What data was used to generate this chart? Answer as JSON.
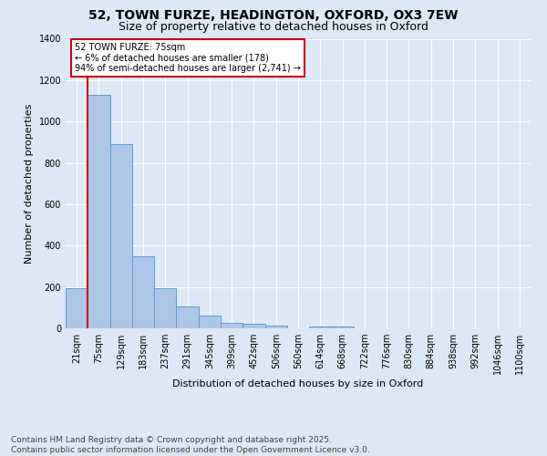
{
  "title_line1": "52, TOWN FURZE, HEADINGTON, OXFORD, OX3 7EW",
  "title_line2": "Size of property relative to detached houses in Oxford",
  "xlabel": "Distribution of detached houses by size in Oxford",
  "ylabel": "Number of detached properties",
  "bin_labels": [
    "21sqm",
    "75sqm",
    "129sqm",
    "183sqm",
    "237sqm",
    "291sqm",
    "345sqm",
    "399sqm",
    "452sqm",
    "506sqm",
    "560sqm",
    "614sqm",
    "668sqm",
    "722sqm",
    "776sqm",
    "830sqm",
    "884sqm",
    "938sqm",
    "992sqm",
    "1046sqm",
    "1100sqm"
  ],
  "bar_values": [
    195,
    1130,
    890,
    350,
    195,
    105,
    62,
    25,
    20,
    13,
    0,
    8,
    8,
    0,
    0,
    0,
    0,
    0,
    0,
    0,
    0
  ],
  "bar_color": "#aec6e8",
  "bar_edge_color": "#5a9fd4",
  "vline_color": "#cc0000",
  "annotation_text": "52 TOWN FURZE: 75sqm\n← 6% of detached houses are smaller (178)\n94% of semi-detached houses are larger (2,741) →",
  "annotation_box_color": "#cc0000",
  "background_color": "#dce8f5",
  "plot_bg_color": "#dce8f5",
  "ylim": [
    0,
    1400
  ],
  "footer_line1": "Contains HM Land Registry data © Crown copyright and database right 2025.",
  "footer_line2": "Contains public sector information licensed under the Open Government Licence v3.0.",
  "grid_color": "#ffffff",
  "title_fontsize": 10,
  "subtitle_fontsize": 9,
  "ylabel_fontsize": 8,
  "xlabel_fontsize": 8,
  "tick_fontsize": 7,
  "annotation_fontsize": 7,
  "footer_fontsize": 6.5
}
